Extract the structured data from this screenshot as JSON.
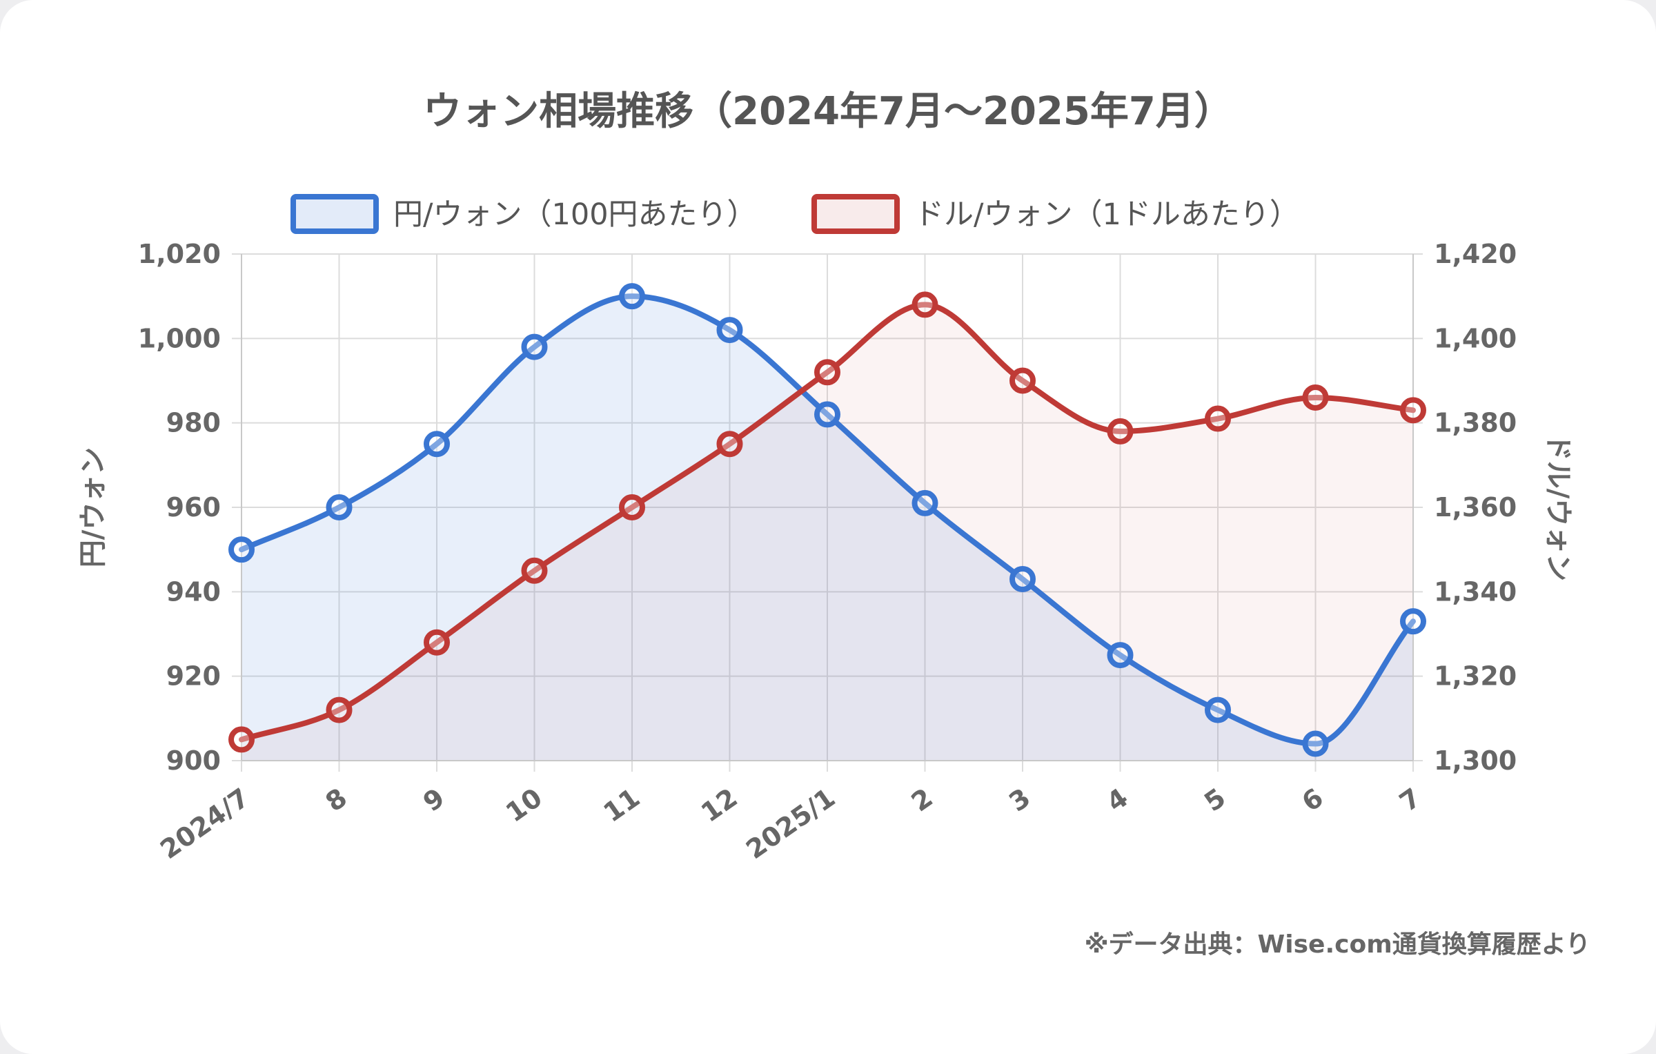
{
  "colors": {
    "jpy": "#3a76d2",
    "usd": "#bf3a36",
    "jpy_fill": "rgba(80,130,220,0.13)",
    "usd_fill": "rgba(200,90,90,0.07)",
    "grid": "#dcdcdc",
    "text": "#555555"
  },
  "chart_data": {
    "type": "line",
    "title": "ウォン相場推移（2024年7月〜2025年7月）",
    "categories": [
      "2024/7",
      "8",
      "9",
      "10",
      "11",
      "12",
      "2025/1",
      "2",
      "3",
      "4",
      "5",
      "6",
      "7"
    ],
    "series": [
      {
        "name": "円/ウォン（100円あたり）",
        "axis": "left",
        "color": "#3a76d2",
        "values": [
          950,
          960,
          975,
          998,
          1010,
          1002,
          982,
          961,
          943,
          925,
          912,
          904,
          933
        ]
      },
      {
        "name": "ドル/ウォン（1ドルあたり）",
        "axis": "right",
        "color": "#bf3a36",
        "values": [
          1305,
          1312,
          1328,
          1345,
          1360,
          1375,
          1392,
          1408,
          1390,
          1378,
          1381,
          1386,
          1383
        ]
      }
    ],
    "y_left": {
      "label": "円/ウォン",
      "min": 900,
      "max": 1020,
      "ticks": [
        "900",
        "920",
        "940",
        "960",
        "980",
        "1,000",
        "1,020"
      ]
    },
    "y_right": {
      "label": "ドル/ウォン",
      "min": 1300,
      "max": 1420,
      "ticks": [
        "1,300",
        "1,320",
        "1,340",
        "1,360",
        "1,380",
        "1,400",
        "1,420"
      ]
    },
    "grid": true,
    "legend": "top-center",
    "source": "※データ出典：Wise.com通貨換算履歴より"
  }
}
